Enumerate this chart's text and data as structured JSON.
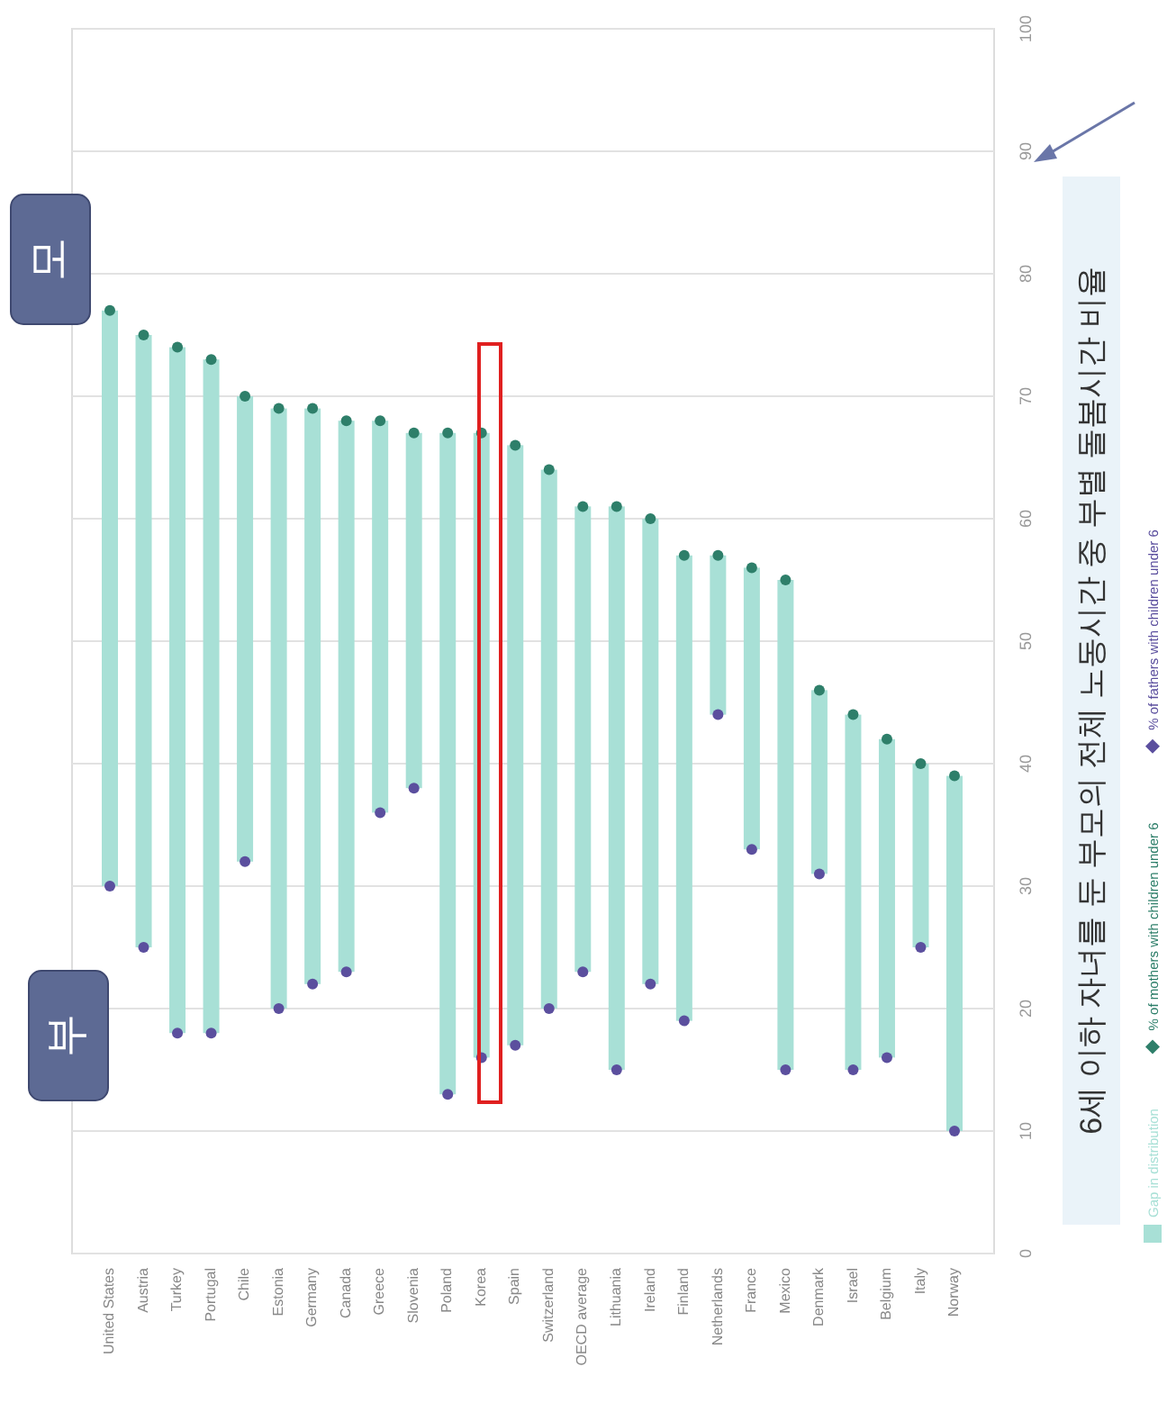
{
  "chart_data": {
    "type": "bar",
    "title": "6세 이하 자녀를 둔 부모의 전체 노동시간 중 부별 돌봄시간 비율",
    "categories": [
      "United States",
      "Austria",
      "Turkey",
      "Portugal",
      "Chile",
      "Estonia",
      "Germany",
      "Canada",
      "Greece",
      "Slovenia",
      "Poland",
      "Korea",
      "Spain",
      "Switzerland",
      "OECD average",
      "Lithuania",
      "Ireland",
      "Finland",
      "Netherlands",
      "France",
      "Mexico",
      "Denmark",
      "Israel",
      "Belgium",
      "Italy",
      "Norway"
    ],
    "series": [
      {
        "name": "Gap in distribution",
        "type": "bar",
        "color": "#a8e0d6",
        "base": [
          30,
          25,
          18,
          18,
          32,
          20,
          22,
          23,
          36,
          38,
          13,
          16,
          17,
          20,
          23,
          15,
          22,
          19,
          44,
          33,
          15,
          31,
          15,
          16,
          25,
          10
        ],
        "values": [
          47,
          50,
          56,
          55,
          38,
          49,
          47,
          45,
          32,
          29,
          54,
          51,
          49,
          44,
          38,
          46,
          38,
          38,
          13,
          23,
          40,
          15,
          29,
          26,
          15,
          29
        ]
      },
      {
        "name": "% of mothers with children under 6",
        "type": "scatter",
        "color": "#2e7f6a",
        "values": [
          77,
          75,
          74,
          73,
          70,
          69,
          69,
          68,
          68,
          67,
          67,
          67,
          66,
          64,
          61,
          61,
          60,
          57,
          57,
          56,
          55,
          46,
          44,
          42,
          40,
          39
        ]
      },
      {
        "name": "% of fathers with children under 6",
        "type": "scatter",
        "color": "#5b4f9e",
        "values": [
          30,
          25,
          18,
          18,
          32,
          20,
          22,
          23,
          36,
          38,
          13,
          16,
          17,
          20,
          23,
          15,
          22,
          19,
          44,
          33,
          15,
          31,
          15,
          16,
          25,
          10
        ]
      }
    ],
    "ylim": [
      0,
      100
    ],
    "yticks": [
      0,
      10,
      20,
      30,
      40,
      50,
      60,
      70,
      80,
      90,
      100
    ],
    "grid": "y",
    "legend": "right",
    "marker": "circle",
    "annotations": [
      "모",
      "부"
    ]
  }
}
